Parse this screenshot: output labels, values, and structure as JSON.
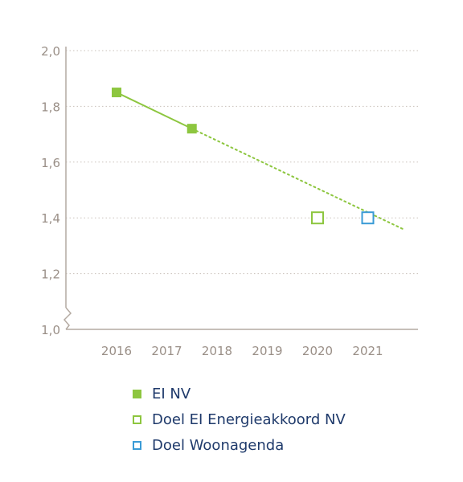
{
  "chart_data": {
    "type": "line",
    "title": "",
    "xlabel": "",
    "ylabel": "",
    "ylim": [
      1.0,
      2.0
    ],
    "yticks": [
      "1,0",
      "1,2",
      "1,4",
      "1,6",
      "1,8",
      "2,0"
    ],
    "yticks_values": [
      1.0,
      1.2,
      1.4,
      1.6,
      1.8,
      2.0
    ],
    "xticks": [
      "2016",
      "2017",
      "2018",
      "2019",
      "2020",
      "2021"
    ],
    "xlim": [
      2015.3,
      2022.2
    ],
    "grid": true,
    "grid_style": "dotted",
    "series": [
      {
        "name": "EI NV",
        "marker": "filled-square",
        "color": "#8dc63f",
        "x": [
          2016,
          2017.5
        ],
        "y": [
          1.85,
          1.72
        ]
      },
      {
        "name": "Doel EI Energieakkoord NV",
        "marker": "open-square",
        "color": "#8dc63f",
        "x": [
          2020
        ],
        "y": [
          1.4
        ]
      },
      {
        "name": "Doel Woonagenda",
        "marker": "open-square",
        "color": "#3a9bd6",
        "x": [
          2021
        ],
        "y": [
          1.4
        ]
      }
    ],
    "trendline": {
      "style": "dotted",
      "color": "#8dc63f",
      "x": [
        2017.5,
        2021.7
      ],
      "y": [
        1.72,
        1.36
      ]
    },
    "legend_position": "bottom",
    "colors": {
      "axis": "#b4aaa2",
      "grid": "#c9c1ba",
      "tick_text": "#9a8f87",
      "legend_text": "#1f3a6b",
      "green": "#8dc63f",
      "blue": "#3a9bd6"
    }
  }
}
